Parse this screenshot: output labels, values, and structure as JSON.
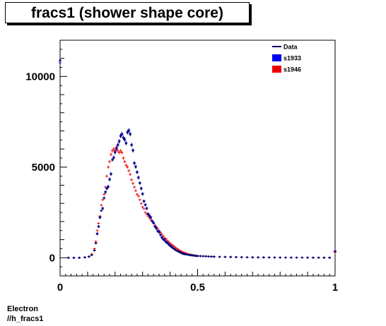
{
  "title": "fracs1 (shower shape core)",
  "footer": {
    "line1": "Electron",
    "line2": "//h_fracs1"
  },
  "colors": {
    "data": "#000066",
    "s1933": "#0000ee",
    "s1946": "#ee0000"
  },
  "chart_data": {
    "type": "scatter",
    "title": "fracs1 (shower shape core)",
    "xlabel": "",
    "ylabel": "",
    "xlim": [
      0,
      1
    ],
    "ylim": [
      -1000,
      12000
    ],
    "x_ticks": [
      {
        "value": 0,
        "label": "0"
      },
      {
        "value": 0.5,
        "label": "0.5"
      },
      {
        "value": 1,
        "label": "1"
      }
    ],
    "y_ticks": [
      {
        "value": 0,
        "label": "0"
      },
      {
        "value": 5000,
        "label": "5000"
      },
      {
        "value": 10000,
        "label": "10000"
      }
    ],
    "grid": false,
    "legend_position": "top-right",
    "legend": [
      {
        "name": "Data",
        "style": "line",
        "color": "#000066"
      },
      {
        "name": "s1933",
        "style": "box",
        "color": "#0000ee"
      },
      {
        "name": "s1946",
        "style": "box",
        "color": "#ee0000"
      }
    ],
    "series": [
      {
        "name": "Data",
        "x": [
          0.0,
          0.03,
          0.05,
          0.07,
          0.09,
          0.105,
          0.115,
          0.125,
          0.13,
          0.135,
          0.14,
          0.145,
          0.15,
          0.155,
          0.16,
          0.165,
          0.17,
          0.175,
          0.18,
          0.185,
          0.19,
          0.195,
          0.2,
          0.205,
          0.21,
          0.215,
          0.22,
          0.225,
          0.23,
          0.235,
          0.24,
          0.245,
          0.25,
          0.255,
          0.26,
          0.265,
          0.27,
          0.275,
          0.28,
          0.285,
          0.29,
          0.295,
          0.3,
          0.305,
          0.31,
          0.315,
          0.32,
          0.325,
          0.33,
          0.335,
          0.34,
          0.345,
          0.35,
          0.355,
          0.36,
          0.365,
          0.37,
          0.375,
          0.38,
          0.385,
          0.39,
          0.395,
          0.4,
          0.405,
          0.41,
          0.415,
          0.42,
          0.425,
          0.43,
          0.435,
          0.44,
          0.445,
          0.45,
          0.455,
          0.46,
          0.465,
          0.47,
          0.475,
          0.48,
          0.485,
          0.49,
          0.495,
          0.5,
          0.51,
          0.52,
          0.53,
          0.54,
          0.55,
          0.56,
          0.58,
          0.6,
          0.62,
          0.64,
          0.66,
          0.68,
          0.7,
          0.72,
          0.74,
          0.76,
          0.78,
          0.8,
          0.82,
          0.84,
          0.86,
          0.88,
          0.9,
          0.92,
          0.94,
          0.96,
          0.98,
          1.0
        ],
        "y": [
          10900,
          0,
          0,
          0,
          20,
          60,
          150,
          400,
          800,
          1300,
          1700,
          2200,
          2600,
          2700,
          3300,
          3600,
          3800,
          3900,
          4300,
          4600,
          5400,
          5500,
          5800,
          6000,
          6200,
          6400,
          6700,
          6800,
          6600,
          6500,
          6300,
          6900,
          7000,
          6800,
          6200,
          5900,
          5200,
          5000,
          4700,
          4400,
          4100,
          3800,
          3500,
          3100,
          2900,
          2700,
          2400,
          2300,
          2200,
          2000,
          1900,
          1700,
          1600,
          1450,
          1400,
          1250,
          1100,
          1000,
          950,
          850,
          800,
          720,
          650,
          590,
          530,
          480,
          420,
          380,
          340,
          300,
          260,
          230,
          200,
          190,
          180,
          170,
          150,
          140,
          130,
          120,
          110,
          100,
          95,
          90,
          85,
          80,
          70,
          65,
          60,
          50,
          45,
          40,
          35,
          30,
          25,
          20,
          20,
          18,
          15,
          15,
          12,
          12,
          10,
          10,
          10,
          8,
          8,
          6,
          6,
          5,
          350
        ]
      },
      {
        "name": "s1933",
        "x": [
          0.0,
          0.03,
          0.05,
          0.07,
          0.09,
          0.105,
          0.115,
          0.125,
          0.13,
          0.135,
          0.14,
          0.145,
          0.15,
          0.155,
          0.16,
          0.165,
          0.17,
          0.175,
          0.18,
          0.185,
          0.19,
          0.195,
          0.2,
          0.205,
          0.21,
          0.215,
          0.22,
          0.225,
          0.23,
          0.235,
          0.24,
          0.245,
          0.25,
          0.255,
          0.26,
          0.265,
          0.27,
          0.275,
          0.28,
          0.285,
          0.29,
          0.295,
          0.3,
          0.305,
          0.31,
          0.315,
          0.32,
          0.325,
          0.33,
          0.335,
          0.34,
          0.345,
          0.35,
          0.355,
          0.36,
          0.365,
          0.37,
          0.375,
          0.38,
          0.385,
          0.39,
          0.395,
          0.4,
          0.405,
          0.41,
          0.415,
          0.42,
          0.425,
          0.43,
          0.435,
          0.44,
          0.445,
          0.45,
          0.455,
          0.46,
          0.465,
          0.47,
          0.475,
          0.48,
          0.485,
          0.49,
          0.495,
          0.5,
          0.51,
          0.52,
          0.53,
          0.54,
          0.55,
          0.56,
          0.58,
          0.6,
          0.62,
          0.64,
          0.66,
          0.68,
          0.7,
          0.72,
          0.74,
          0.76,
          0.78,
          0.8,
          0.82,
          0.84,
          0.86,
          0.88,
          0.9,
          0.92,
          0.94,
          0.96,
          0.98,
          1.0
        ],
        "y": [
          10750,
          0,
          0,
          0,
          20,
          60,
          160,
          420,
          820,
          1350,
          1750,
          2250,
          2600,
          2750,
          3300,
          3650,
          3850,
          3950,
          4350,
          4650,
          5400,
          5550,
          5850,
          6050,
          6250,
          6450,
          6750,
          6850,
          6650,
          6550,
          6350,
          6950,
          7050,
          6850,
          6250,
          5950,
          5250,
          5050,
          4750,
          4450,
          4150,
          3850,
          3550,
          3150,
          2950,
          2750,
          2450,
          2350,
          2250,
          2050,
          1950,
          1750,
          1650,
          1500,
          1450,
          1300,
          1150,
          1050,
          1000,
          900,
          850,
          760,
          690,
          620,
          560,
          500,
          440,
          400,
          360,
          320,
          280,
          250,
          220,
          205,
          190,
          180,
          160,
          150,
          140,
          130,
          120,
          110,
          100,
          95,
          90,
          85,
          75,
          70,
          65,
          55,
          50,
          45,
          40,
          35,
          30,
          25,
          22,
          20,
          18,
          16,
          14,
          13,
          12,
          11,
          10,
          9,
          8,
          7,
          6,
          5,
          380
        ]
      },
      {
        "name": "s1946",
        "x": [
          0.0,
          0.03,
          0.05,
          0.07,
          0.09,
          0.105,
          0.115,
          0.125,
          0.13,
          0.135,
          0.14,
          0.145,
          0.15,
          0.155,
          0.16,
          0.165,
          0.17,
          0.175,
          0.18,
          0.185,
          0.19,
          0.195,
          0.2,
          0.205,
          0.21,
          0.215,
          0.22,
          0.225,
          0.23,
          0.235,
          0.24,
          0.245,
          0.25,
          0.255,
          0.26,
          0.265,
          0.27,
          0.275,
          0.28,
          0.285,
          0.29,
          0.295,
          0.3,
          0.305,
          0.31,
          0.315,
          0.32,
          0.325,
          0.33,
          0.335,
          0.34,
          0.345,
          0.35,
          0.355,
          0.36,
          0.365,
          0.37,
          0.375,
          0.38,
          0.385,
          0.39,
          0.395,
          0.4,
          0.405,
          0.41,
          0.415,
          0.42,
          0.425,
          0.43,
          0.435,
          0.44,
          0.445,
          0.45,
          0.455,
          0.46,
          0.465,
          0.47,
          0.475,
          0.48,
          0.485,
          0.49,
          0.495,
          0.5,
          0.51,
          0.52,
          0.53,
          0.54,
          0.55,
          0.56,
          0.58,
          0.6,
          0.62,
          0.64,
          0.66,
          0.68,
          0.7,
          0.72,
          0.74,
          0.76,
          0.78,
          0.8,
          0.82,
          0.84,
          0.86,
          0.88,
          0.9,
          0.92,
          0.94,
          0.96,
          0.98,
          1.0
        ],
        "y": [
          10850,
          0,
          0,
          0,
          25,
          80,
          200,
          500,
          900,
          1500,
          1900,
          2300,
          2900,
          3200,
          3500,
          3900,
          4500,
          5000,
          5300,
          5700,
          5900,
          6000,
          5900,
          6100,
          5900,
          5800,
          5900,
          5800,
          5500,
          5300,
          5100,
          5000,
          4800,
          4600,
          4300,
          4100,
          3900,
          3700,
          3500,
          3400,
          3200,
          3000,
          2800,
          2700,
          2500,
          2400,
          2300,
          2200,
          2100,
          2000,
          1900,
          1800,
          1700,
          1600,
          1500,
          1400,
          1300,
          1200,
          1100,
          1050,
          950,
          870,
          800,
          740,
          680,
          620,
          560,
          500,
          450,
          400,
          360,
          320,
          290,
          260,
          235,
          210,
          190,
          175,
          160,
          145,
          130,
          120,
          110,
          100,
          90,
          80,
          70,
          65,
          60,
          50,
          45,
          40,
          35,
          30,
          28,
          25,
          22,
          20,
          18,
          15,
          14,
          12,
          11,
          10,
          9,
          8,
          7,
          6,
          5,
          4,
          300
        ]
      }
    ]
  }
}
